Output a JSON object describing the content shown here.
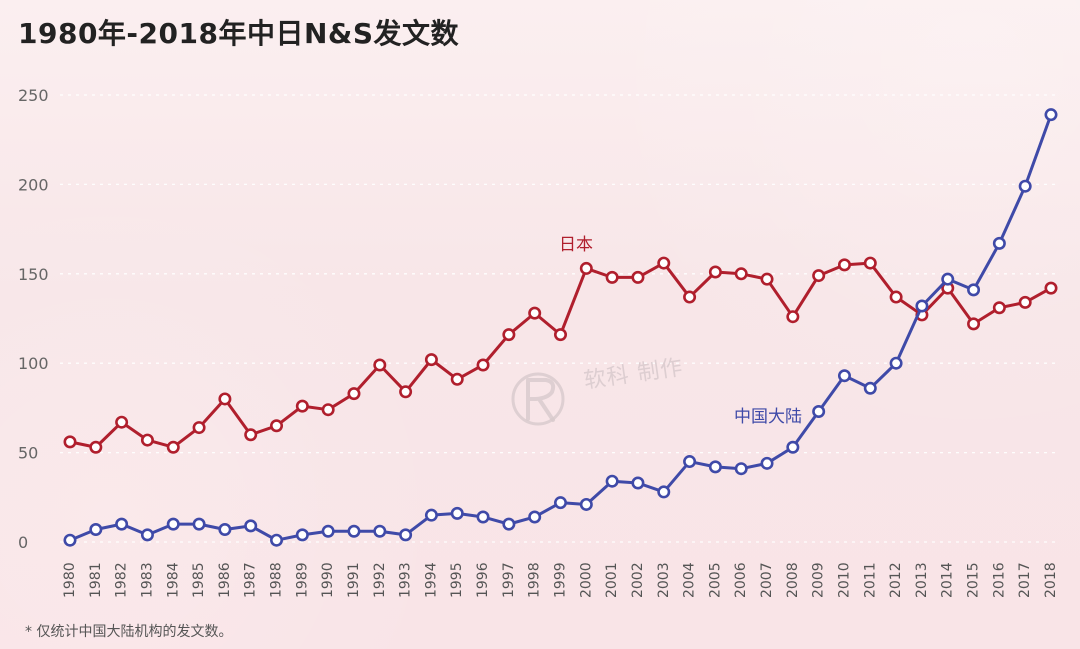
{
  "title": "1980年-2018年中日N&S发文数",
  "footnote": "* 仅统计中国大陆机构的发文数。",
  "watermark": {
    "text": "软科 制作"
  },
  "colors": {
    "japan": "#b01f2d",
    "china": "#3f4aa8",
    "grid": "#ffffff",
    "text": "#555555",
    "title": "#222222"
  },
  "chart_data": {
    "type": "line",
    "title": "1980年-2018年中日N&S发文数",
    "xlabel": "",
    "ylabel": "",
    "x": [
      "1980",
      "1981",
      "1982",
      "1983",
      "1984",
      "1985",
      "1986",
      "1987",
      "1988",
      "1989",
      "1990",
      "1991",
      "1992",
      "1993",
      "1994",
      "1995",
      "1996",
      "1997",
      "1998",
      "1999",
      "2000",
      "2001",
      "2002",
      "2003",
      "2004",
      "2005",
      "2006",
      "2007",
      "2008",
      "2009",
      "2010",
      "2011",
      "2012",
      "2013",
      "2014",
      "2015",
      "2016",
      "2017",
      "2018"
    ],
    "ylim": [
      0,
      250
    ],
    "yticks": [
      0,
      50,
      100,
      150,
      200,
      250
    ],
    "grid": true,
    "series": [
      {
        "name": "日本",
        "values": [
          56,
          53,
          67,
          57,
          53,
          64,
          80,
          60,
          65,
          76,
          74,
          83,
          99,
          84,
          102,
          91,
          99,
          116,
          128,
          116,
          153,
          148,
          148,
          156,
          137,
          151,
          150,
          147,
          126,
          149,
          155,
          156,
          137,
          127,
          142,
          122,
          131,
          134,
          142
        ]
      },
      {
        "name": "中国大陆",
        "values": [
          1,
          7,
          10,
          4,
          10,
          10,
          7,
          9,
          1,
          4,
          6,
          6,
          6,
          4,
          15,
          16,
          14,
          10,
          14,
          22,
          21,
          34,
          33,
          28,
          45,
          42,
          41,
          44,
          53,
          73,
          93,
          86,
          100,
          132,
          147,
          141,
          167,
          199,
          239
        ]
      }
    ]
  }
}
